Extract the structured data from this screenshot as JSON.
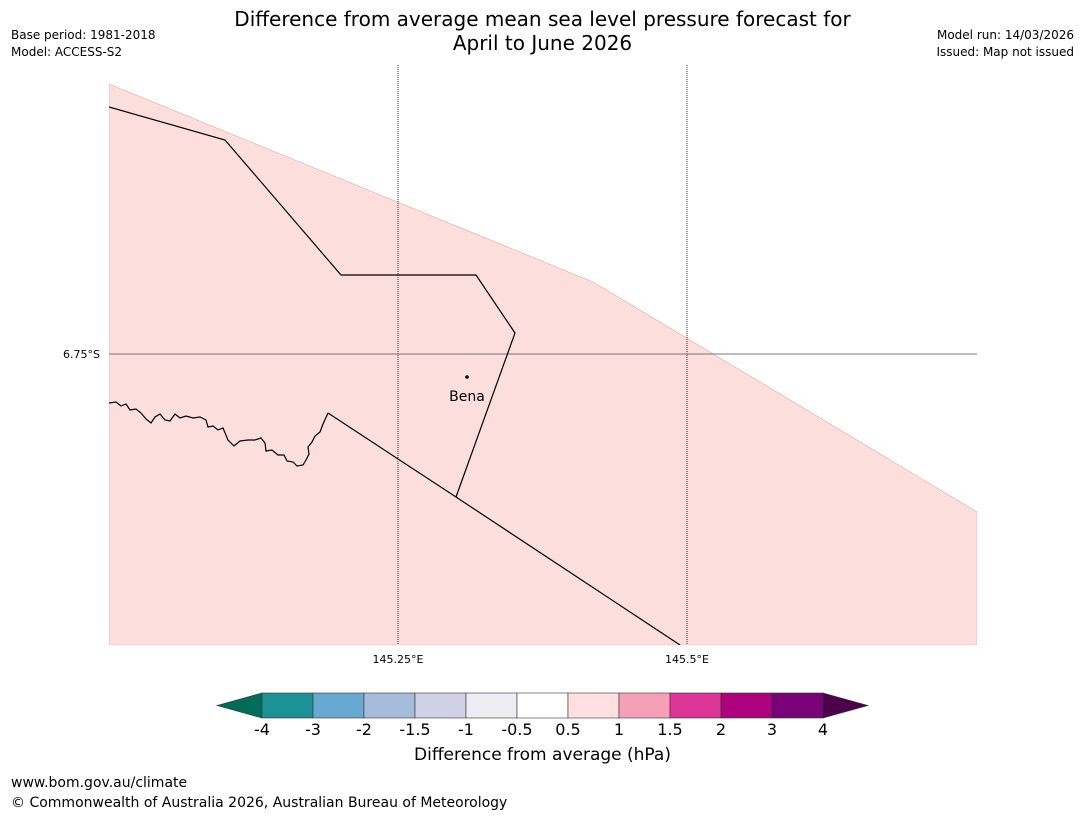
{
  "title_line1": "Difference from average mean sea level pressure forecast for",
  "title_line2": "April to June 2026",
  "meta_left": {
    "base_period": "Base period: 1981-2018",
    "model": "Model: ACCESS-S2"
  },
  "meta_right": {
    "model_run": "Model run: 14/03/2026",
    "issued": "Issued: Map not issued"
  },
  "map": {
    "lat_label": "6.75°S",
    "lon_labels": [
      "145.25°E",
      "145.5°E"
    ],
    "place_name": "Bena",
    "forecast_fill_color": "#fcdedc"
  },
  "colorbar": {
    "label": "Difference from average (hPa)",
    "ticks": [
      "-4",
      "-3",
      "-2",
      "-1.5",
      "-1",
      "-0.5",
      "0.5",
      "1",
      "1.5",
      "2",
      "3",
      "4"
    ],
    "colors": [
      "#1a9296",
      "#66a8d0",
      "#a6bcdb",
      "#d0d0e6",
      "#ececf2",
      "#ffffff",
      "#ffdfe0",
      "#f6a0b8",
      "#dd3497",
      "#ae017e",
      "#7a0177"
    ],
    "under_color": "#016c59",
    "over_color": "#4d004b"
  },
  "footer": {
    "url": "www.bom.gov.au/climate",
    "copyright": "© Commonwealth of Australia 2026, Australian Bureau of Meteorology"
  }
}
